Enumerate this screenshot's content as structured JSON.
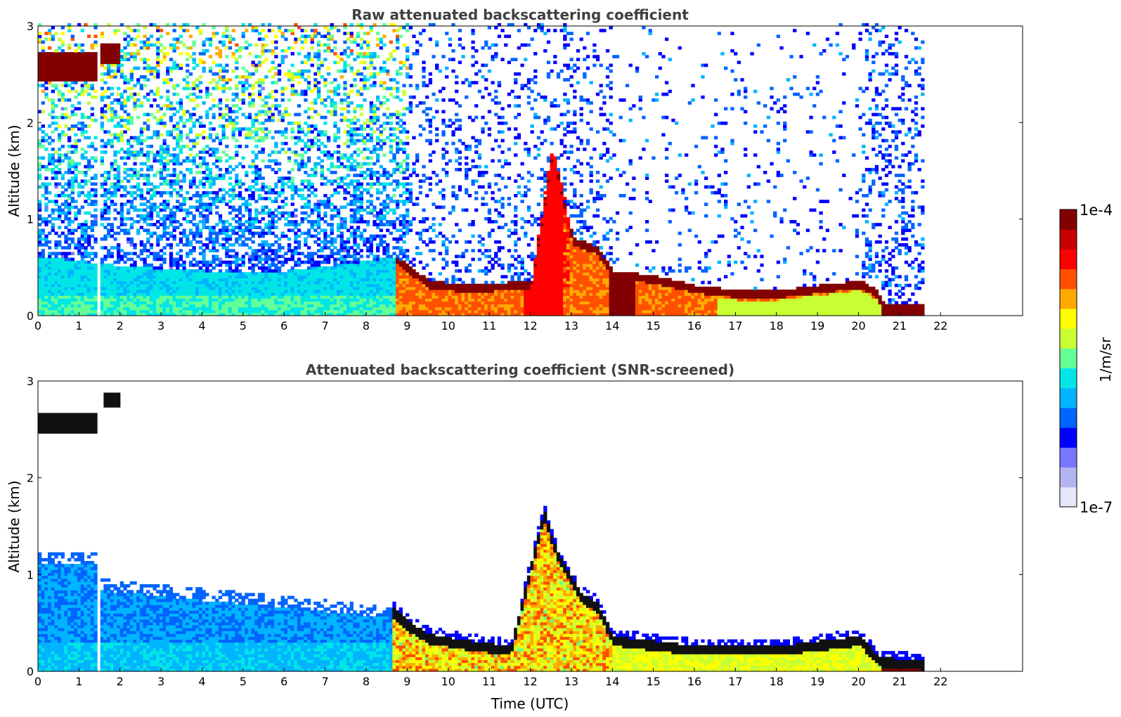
{
  "chart_data": [
    {
      "type": "heatmap",
      "title": "Raw attenuated backscattering coefficient",
      "xlabel": "",
      "ylabel": "Altitude (km)",
      "xlim": [
        0,
        24
      ],
      "ylim": [
        0,
        3
      ],
      "x_ticks": [
        "0",
        "1",
        "2",
        "3",
        "4",
        "5",
        "6",
        "7",
        "8",
        "9",
        "10",
        "11",
        "12",
        "13",
        "14",
        "15",
        "16",
        "17",
        "18",
        "19",
        "20",
        "21",
        "22"
      ],
      "y_ticks": [
        "0",
        "1",
        "2",
        "3"
      ],
      "data_end_time": 21.55,
      "gap_time": 1.5,
      "layer_top_km": [
        {
          "t": 0,
          "h": 0.6
        },
        {
          "t": 2,
          "h": 0.5
        },
        {
          "t": 4,
          "h": 0.45
        },
        {
          "t": 6,
          "h": 0.45
        },
        {
          "t": 8,
          "h": 0.55
        },
        {
          "t": 8.7,
          "h": 0.6
        },
        {
          "t": 9.5,
          "h": 0.35
        },
        {
          "t": 10.5,
          "h": 0.3
        },
        {
          "t": 12,
          "h": 0.35
        },
        {
          "t": 12.5,
          "h": 1.7
        },
        {
          "t": 13,
          "h": 0.8
        },
        {
          "t": 13.6,
          "h": 0.7
        },
        {
          "t": 14,
          "h": 0.45
        },
        {
          "t": 15,
          "h": 0.4
        },
        {
          "t": 16,
          "h": 0.3
        },
        {
          "t": 17,
          "h": 0.25
        },
        {
          "t": 18,
          "h": 0.25
        },
        {
          "t": 19,
          "h": 0.3
        },
        {
          "t": 20,
          "h": 0.35
        },
        {
          "t": 20.4,
          "h": 0.25
        },
        {
          "t": 20.6,
          "h": 0.1
        },
        {
          "t": 21.5,
          "h": 0.1
        }
      ]
    },
    {
      "type": "heatmap",
      "title": "Attenuated backscattering coefficient (SNR-screened)",
      "xlabel": "Time (UTC)",
      "ylabel": "Altitude (km)",
      "xlim": [
        0,
        24
      ],
      "ylim": [
        0,
        3
      ],
      "x_ticks": [
        "0",
        "1",
        "2",
        "3",
        "4",
        "5",
        "6",
        "7",
        "8",
        "9",
        "10",
        "11",
        "12",
        "13",
        "14",
        "15",
        "16",
        "17",
        "18",
        "19",
        "20",
        "21",
        "22"
      ],
      "y_ticks": [
        "0",
        "1",
        "2",
        "3"
      ],
      "data_end_time": 21.55,
      "gap_time": 1.5,
      "cloud_km": [
        {
          "t0": 0,
          "t1": 1.45,
          "h0": 2.45,
          "h1": 2.65
        },
        {
          "t0": 1.55,
          "t1": 1.95,
          "h0": 2.7,
          "h1": 2.85
        }
      ],
      "boundary_km": [
        {
          "t": 8.6,
          "h": 0.6
        },
        {
          "t": 9,
          "h": 0.45
        },
        {
          "t": 9.5,
          "h": 0.32
        },
        {
          "t": 10.5,
          "h": 0.25
        },
        {
          "t": 11.5,
          "h": 0.2
        },
        {
          "t": 12.3,
          "h": 1.6
        },
        {
          "t": 12.6,
          "h": 1.2
        },
        {
          "t": 13.2,
          "h": 0.75
        },
        {
          "t": 13.6,
          "h": 0.65
        },
        {
          "t": 14,
          "h": 0.3
        },
        {
          "t": 15,
          "h": 0.25
        },
        {
          "t": 16,
          "h": 0.2
        },
        {
          "t": 17,
          "h": 0.2
        },
        {
          "t": 18,
          "h": 0.2
        },
        {
          "t": 19,
          "h": 0.25
        },
        {
          "t": 20,
          "h": 0.3
        },
        {
          "t": 20.5,
          "h": 0.08
        },
        {
          "t": 21.5,
          "h": 0.05
        }
      ]
    }
  ],
  "colorbar": {
    "label": "1/m/sr",
    "max_label": "1e-4",
    "min_label": "1e-7",
    "colors": [
      "#e6e6fa",
      "#b4b4f0",
      "#7878ff",
      "#0000ff",
      "#0064ff",
      "#00b4ff",
      "#00e6e6",
      "#64ff96",
      "#c8ff32",
      "#ffff00",
      "#ffaa00",
      "#ff5000",
      "#ff0000",
      "#c80000",
      "#820000"
    ]
  }
}
